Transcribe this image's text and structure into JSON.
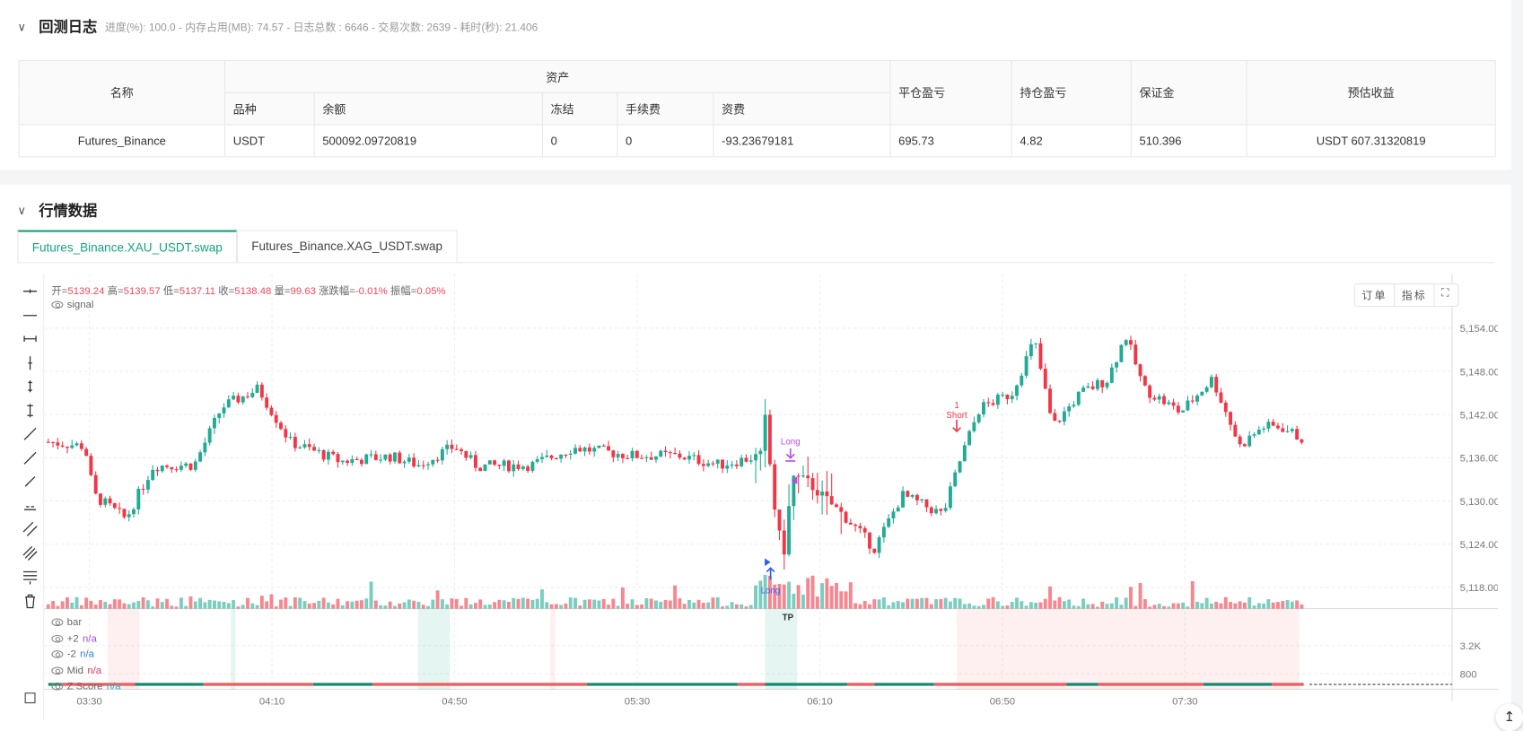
{
  "backtest": {
    "title": "回测日志",
    "meta": "进度(%): 100.0  - 内存占用(MB): 74.57 - 日志总数 : 6646 - 交易次数:  2639 - 耗时(秒): 21.406",
    "table": {
      "headers": {
        "name": "名称",
        "assets": "资产",
        "symbol": "品种",
        "balance": "余额",
        "frozen": "冻结",
        "fee": "手续费",
        "funding": "资费",
        "closed_pnl": "平仓盈亏",
        "position_pnl": "持仓盈亏",
        "margin": "保证金",
        "est_profit": "预估收益"
      },
      "rows": [
        {
          "name": "Futures_Binance",
          "symbol": "USDT",
          "balance": "500092.09720819",
          "frozen": "0",
          "fee": "0",
          "funding": "-93.23679181",
          "closed_pnl": "695.73",
          "position_pnl": "4.82",
          "margin": "510.396",
          "est_profit": "USDT 607.31320819"
        }
      ]
    }
  },
  "market": {
    "title": "行情数据",
    "tabs": [
      {
        "label": "Futures_Binance.XAU_USDT.swap",
        "active": true
      },
      {
        "label": "Futures_Binance.XAG_USDT.swap",
        "active": false
      }
    ],
    "ohlc": [
      {
        "k": "开=",
        "v": "5139.24"
      },
      {
        "k": "高=",
        "v": "5139.57"
      },
      {
        "k": "低=",
        "v": "5137.11"
      },
      {
        "k": "收=",
        "v": "5138.48"
      },
      {
        "k": "量=",
        "v": "99.63"
      },
      {
        "k": "涨跌幅=",
        "v": "-0.01%"
      },
      {
        "k": "振幅=",
        "v": "0.05%"
      }
    ],
    "signal_label": "signal",
    "buttons": {
      "orders": "订单",
      "indicators": "指标",
      "fullscreen": "fullscreen-icon"
    },
    "indicator_legend": [
      {
        "label": "bar",
        "value": "",
        "color": "#666"
      },
      {
        "label": "+2",
        "value": "n/a",
        "color": "#9c4fd6"
      },
      {
        "label": "-2",
        "value": "n/a",
        "color": "#2f7cf6"
      },
      {
        "label": "Mid",
        "value": "n/a",
        "color": "#e8336b"
      },
      {
        "label": "Z Score",
        "value": "n/a",
        "color": "#22b4c8"
      }
    ],
    "price_ticks": [
      "5,154.00",
      "5,148.00",
      "5,142.00",
      "5,136.00",
      "5,130.00",
      "5,124.00",
      "5,118.00"
    ],
    "indicator_ticks": [
      "3.2K",
      "800"
    ],
    "time_ticks": [
      "03:30",
      "04:10",
      "04:50",
      "05:30",
      "06:10",
      "06:50",
      "07:30"
    ],
    "colors": {
      "up": "#22ab94",
      "down": "#f23645",
      "accent": "#14a37f"
    },
    "price_path": [
      [
        "03:21",
        5138.2
      ],
      [
        "03:29",
        5137.6
      ],
      [
        "03:31",
        5130.8
      ],
      [
        "03:38",
        5127.5
      ],
      [
        "03:44",
        5134.9
      ],
      [
        "03:53",
        5135
      ],
      [
        "03:59",
        5143
      ],
      [
        "04:07",
        5145.6
      ],
      [
        "04:14",
        5138.2
      ],
      [
        "04:25",
        5135.5
      ],
      [
        "04:36",
        5136.2
      ],
      [
        "04:42",
        5135
      ],
      [
        "04:50",
        5137.6
      ],
      [
        "04:55",
        5134.8
      ],
      [
        "05:07",
        5135
      ],
      [
        "05:16",
        5137.4
      ],
      [
        "05:29",
        5136.3
      ],
      [
        "05:39",
        5136.3
      ],
      [
        "05:48",
        5135
      ],
      [
        "05:57",
        5136.3
      ],
      [
        "05:58",
        5141.6
      ],
      [
        "06:00",
        5129.5
      ],
      [
        "06:02",
        5122
      ],
      [
        "06:04",
        5133.4
      ],
      [
        "06:07",
        5132.8
      ],
      [
        "06:16",
        5127.5
      ],
      [
        "06:22",
        5123.4
      ],
      [
        "06:28",
        5130.8
      ],
      [
        "06:37",
        5128.1
      ],
      [
        "06:41",
        5136.2
      ],
      [
        "06:45",
        5142.9
      ],
      [
        "06:52",
        5144.9
      ],
      [
        "06:57",
        5152.4
      ],
      [
        "07:01",
        5140.3
      ],
      [
        "07:07",
        5144.9
      ],
      [
        "07:13",
        5146.9
      ],
      [
        "07:17",
        5153
      ],
      [
        "07:21",
        5145.6
      ],
      [
        "07:29",
        5142.3
      ],
      [
        "07:36",
        5147
      ],
      [
        "07:42",
        5137.6
      ],
      [
        "07:47",
        5140.3
      ],
      [
        "07:51",
        5140.3
      ],
      [
        "07:56",
        5138.5
      ]
    ],
    "signals": [
      {
        "type": "Long",
        "time": "06:04",
        "price": 5136.5,
        "color": "#b44fe0",
        "label": "Long"
      },
      {
        "type": "Short",
        "time": "06:40",
        "price": 5141,
        "color": "#f23645",
        "label": "1\nShort"
      },
      {
        "type": "Long",
        "time": "05:59",
        "price": 5118,
        "color": "#2f5bf0",
        "label": "Long"
      },
      {
        "type": "TP",
        "time": "06:03",
        "color": "#e0b800",
        "label": "TP"
      }
    ],
    "shade_bands": [
      [
        "03:34",
        "03:41",
        "neg"
      ],
      [
        "04:01",
        "04:02",
        "pos"
      ],
      [
        "04:42",
        "04:49",
        "pos"
      ],
      [
        "05:11",
        "05:12",
        "neg"
      ],
      [
        "05:58",
        "06:05",
        "pos"
      ],
      [
        "06:40",
        "07:55",
        "neg"
      ]
    ],
    "zscore_segments": [
      [
        "03:21",
        "03:24",
        "pos"
      ],
      [
        "03:24",
        "03:40",
        "neg"
      ],
      [
        "03:40",
        "03:55",
        "pos"
      ],
      [
        "03:55",
        "04:19",
        "neg"
      ],
      [
        "04:19",
        "04:32",
        "pos"
      ],
      [
        "04:32",
        "04:48",
        "neg"
      ],
      [
        "04:48",
        "05:19",
        "neg"
      ],
      [
        "05:19",
        "05:52",
        "pos"
      ],
      [
        "05:52",
        "05:58",
        "neg"
      ],
      [
        "05:58",
        "06:16",
        "pos"
      ],
      [
        "06:16",
        "06:22",
        "neg"
      ],
      [
        "06:22",
        "06:35",
        "pos"
      ],
      [
        "06:35",
        "07:04",
        "neg"
      ],
      [
        "07:04",
        "07:11",
        "pos"
      ],
      [
        "07:11",
        "07:34",
        "neg"
      ],
      [
        "07:34",
        "07:49",
        "pos"
      ],
      [
        "07:49",
        "07:56",
        "neg"
      ]
    ]
  }
}
